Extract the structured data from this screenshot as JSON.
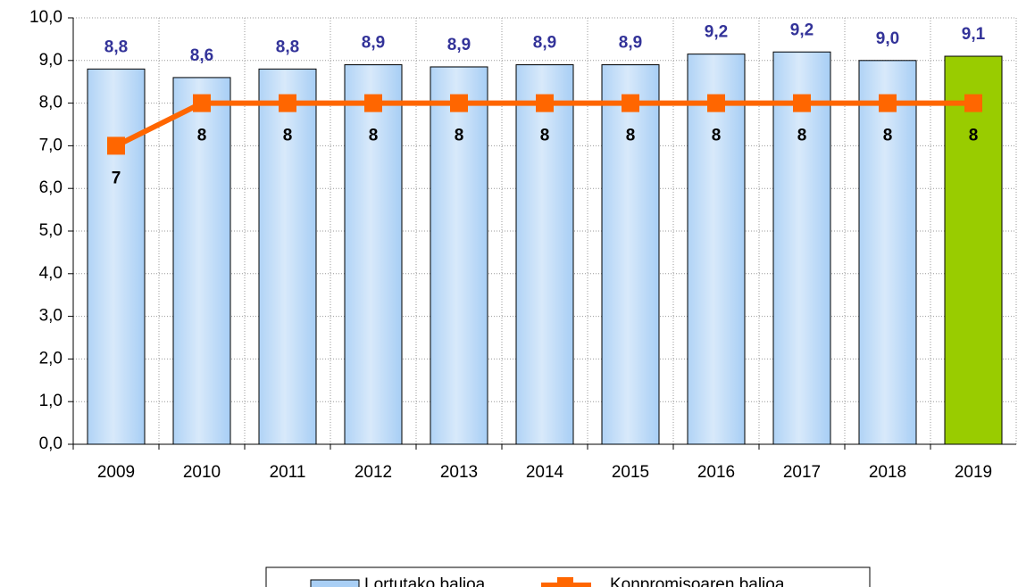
{
  "chart_data": {
    "type": "bar",
    "categories": [
      "2009",
      "2010",
      "2011",
      "2012",
      "2013",
      "2014",
      "2015",
      "2016",
      "2017",
      "2018",
      "2019"
    ],
    "series": [
      {
        "name": "Lortutako balioa",
        "type": "bar",
        "color": "#a9cff5",
        "colors": [
          "#a9cff5",
          "#a9cff5",
          "#a9cff5",
          "#a9cff5",
          "#a9cff5",
          "#a9cff5",
          "#a9cff5",
          "#a9cff5",
          "#a9cff5",
          "#a9cff5",
          "#99cc00"
        ],
        "values": [
          8.8,
          8.6,
          8.8,
          8.9,
          8.85,
          8.9,
          8.9,
          9.15,
          9.2,
          9.0,
          9.1
        ],
        "value_labels": [
          "8,8",
          "8,6",
          "8,8",
          "8,9",
          "8,9",
          "8,9",
          "8,9",
          "9,2",
          "9,2",
          "9,0",
          "9,1"
        ]
      },
      {
        "name": "Konpromisoaren balioa",
        "type": "line",
        "color": "#ff6600",
        "values": [
          7,
          8,
          8,
          8,
          8,
          8,
          8,
          8,
          8,
          8,
          8
        ]
      }
    ],
    "ylim": [
      0,
      10
    ],
    "yticks": [
      {
        "value": 0,
        "label": "0,0"
      },
      {
        "value": 1,
        "label": "1,0"
      },
      {
        "value": 2,
        "label": "2,0"
      },
      {
        "value": 3,
        "label": "3,0"
      },
      {
        "value": 4,
        "label": "4,0"
      },
      {
        "value": 5,
        "label": "5,0"
      },
      {
        "value": 6,
        "label": "6,0"
      },
      {
        "value": 7,
        "label": "7,0"
      },
      {
        "value": 8,
        "label": "8,0"
      },
      {
        "value": 9,
        "label": "9,0"
      },
      {
        "value": 10,
        "label": "10,0"
      }
    ],
    "grid": true,
    "legend": "bottom"
  }
}
